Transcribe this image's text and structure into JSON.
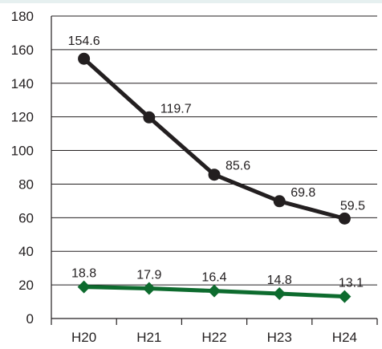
{
  "chart_data": {
    "type": "line",
    "categories": [
      "H20",
      "H21",
      "H22",
      "H23",
      "H24"
    ],
    "ylim": [
      0,
      180
    ],
    "yticks": [
      0,
      20,
      40,
      60,
      80,
      100,
      120,
      140,
      160,
      180
    ],
    "grid": true,
    "title": "",
    "xlabel": "",
    "ylabel": "",
    "series": [
      {
        "values": [
          154.6,
          119.7,
          85.6,
          69.8,
          59.5
        ],
        "labels": [
          "154.6",
          "119.7",
          "85.6",
          "69.8",
          "59.5"
        ],
        "color": "#231f20",
        "marker": "circle"
      },
      {
        "values": [
          18.8,
          17.9,
          16.4,
          14.8,
          13.1
        ],
        "labels": [
          "18.8",
          "17.9",
          "16.4",
          "14.8",
          "13.1"
        ],
        "color": "#0d6b2e",
        "marker": "diamond"
      }
    ]
  }
}
